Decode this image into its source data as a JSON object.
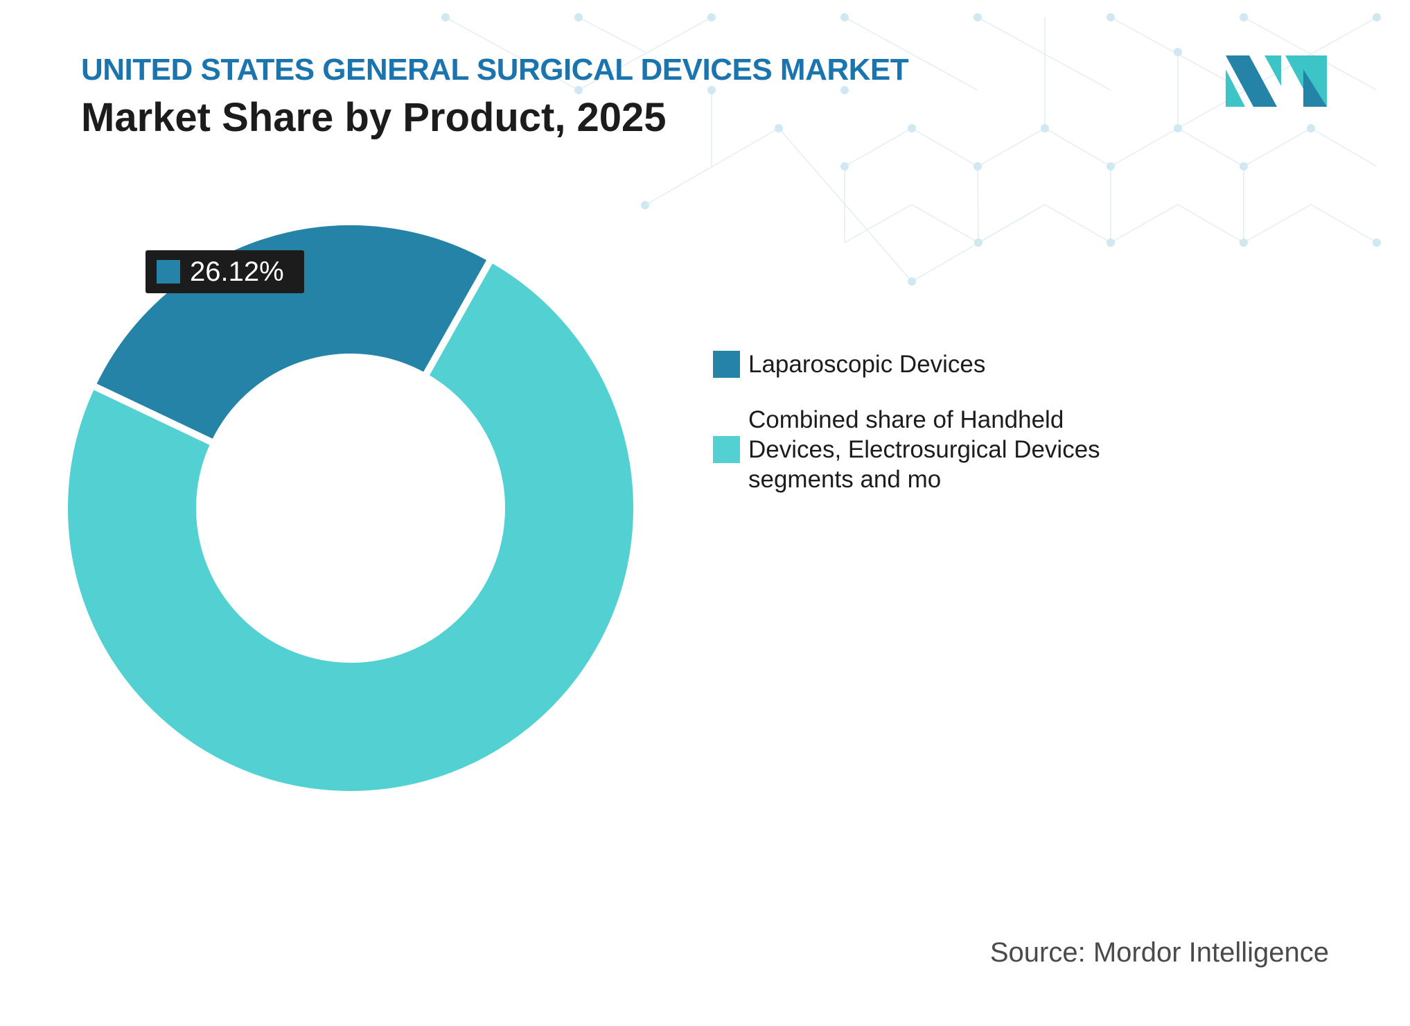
{
  "header": {
    "title": "UNITED STATES GENERAL SURGICAL DEVICES MARKET",
    "subtitle": "Market Share by Product, 2025"
  },
  "source": "Source: Mordor Intelligence",
  "colors": {
    "title": "#1a74ad",
    "laparoscopic": "#2683a8",
    "other": "#52d0d2",
    "tooltip_bg": "#1c1c1c"
  },
  "chart_data": {
    "type": "pie",
    "variant": "donut",
    "title": "Market Share by Product, 2025",
    "slices": [
      {
        "label": "Laparoscopic Devices",
        "value": 26.12,
        "color": "#2683a8"
      },
      {
        "label": "Combined share of Handheld Devices, Electrosurgical Devices segments and mo",
        "value": 73.88,
        "color": "#52d0d2"
      }
    ],
    "data_labels": [
      "26.12%"
    ],
    "legend_position": "right"
  }
}
